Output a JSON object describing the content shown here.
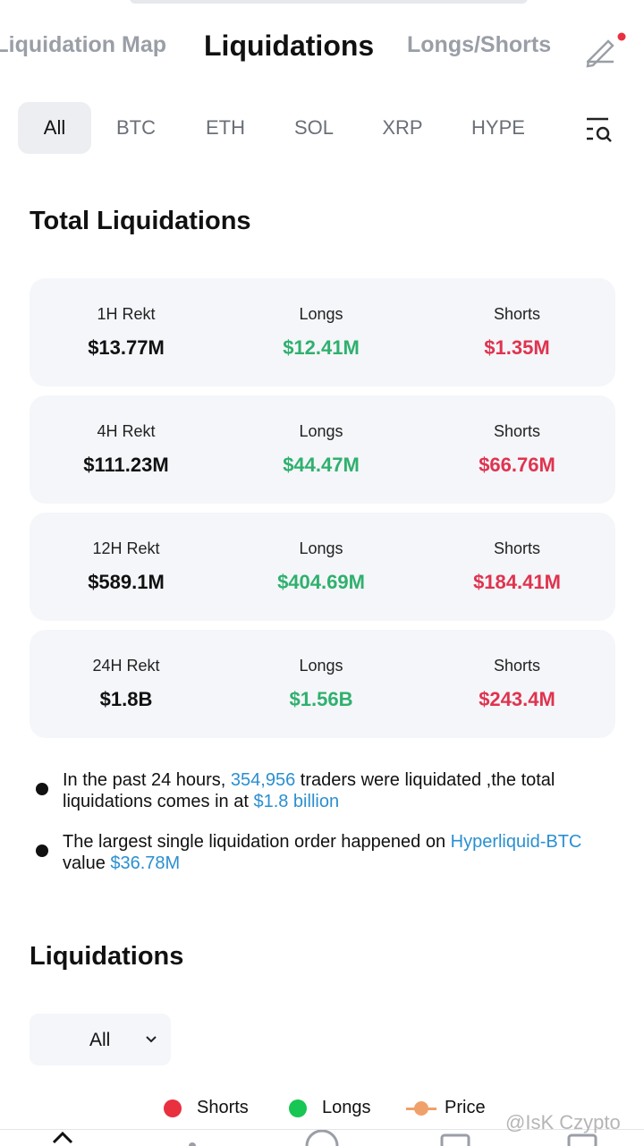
{
  "header": {
    "tabs": [
      "Liquidation Map",
      "Liquidations",
      "Longs/Shorts"
    ],
    "active_tab": 1
  },
  "filters": {
    "items": [
      "All",
      "BTC",
      "ETH",
      "SOL",
      "XRP",
      "HYPE"
    ],
    "active": 0
  },
  "total": {
    "title": "Total Liquidations",
    "cards": [
      {
        "period": "1H Rekt",
        "total": "$13.77M",
        "longs_label": "Longs",
        "longs": "$12.41M",
        "shorts_label": "Shorts",
        "shorts": "$1.35M"
      },
      {
        "period": "4H Rekt",
        "total": "$111.23M",
        "longs_label": "Longs",
        "longs": "$44.47M",
        "shorts_label": "Shorts",
        "shorts": "$66.76M"
      },
      {
        "period": "12H Rekt",
        "total": "$589.1M",
        "longs_label": "Longs",
        "longs": "$404.69M",
        "shorts_label": "Shorts",
        "shorts": "$184.41M"
      },
      {
        "period": "24H Rekt",
        "total": "$1.8B",
        "longs_label": "Longs",
        "longs": "$1.56B",
        "shorts_label": "Shorts",
        "shorts": "$243.4M"
      }
    ],
    "bullets": [
      [
        "In the past 24 hours, ",
        "354,956",
        " traders were liquidated ,the total liquidations comes in at ",
        "$1.8 billion"
      ],
      [
        "The largest single liquidation order happened on ",
        "Hyperliquid-BTC",
        " value ",
        "$36.78M"
      ]
    ]
  },
  "liquidations": {
    "title": "Liquidations",
    "dropdown": "All",
    "legend": [
      {
        "name": "Shorts",
        "color": "#e8303f"
      },
      {
        "name": "Longs",
        "color": "#17c653"
      },
      {
        "name": "Price",
        "color": "#f0a06a"
      }
    ]
  },
  "watermark": "@IsK Czypto"
}
